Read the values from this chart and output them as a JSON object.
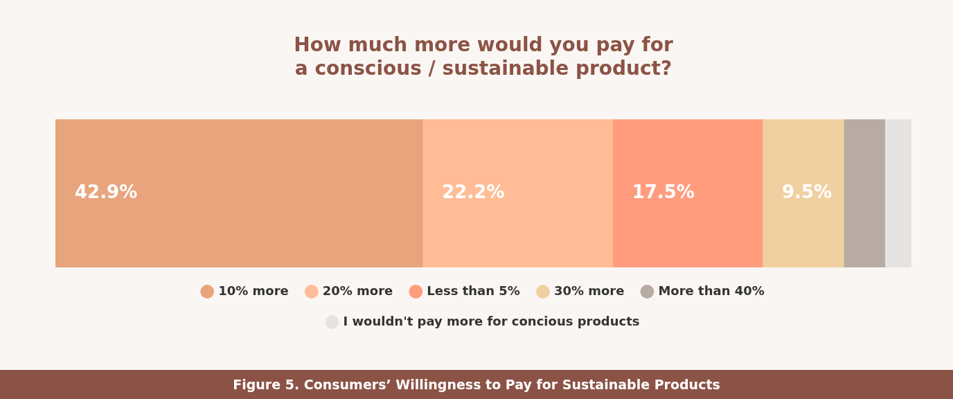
{
  "chart_data": {
    "type": "bar",
    "orientation": "horizontal",
    "stacked": true,
    "title": "How much more would you pay for\na conscious / sustainable product?",
    "categories": [
      null
    ],
    "xlim": [
      0,
      100
    ],
    "tick_labels": false,
    "legend": "bottom",
    "series": [
      {
        "name": "10% more",
        "color": "#e8a47c",
        "values": [
          42.9
        ],
        "value_labels": [
          "42.9%"
        ]
      },
      {
        "name": "20% more",
        "color": "#ffbc97",
        "values": [
          22.2
        ],
        "value_labels": [
          "22.2%"
        ]
      },
      {
        "name": "Less than 5%",
        "color": "#ff9c7e",
        "values": [
          17.5
        ],
        "value_labels": [
          "17.5%"
        ]
      },
      {
        "name": "30% more",
        "color": "#f0d0a0",
        "values": [
          9.5
        ],
        "value_labels": [
          "9.5%"
        ]
      },
      {
        "name": "More than 40%",
        "color": "#b8aba3",
        "values": [
          4.8
        ],
        "value_labels": [
          null
        ]
      },
      {
        "name": "I wouldn't pay more for concious products",
        "color": "#e6e4e3",
        "values": [
          3.1
        ],
        "value_labels": [
          null
        ]
      }
    ],
    "annotations": [
      "Figure 5. Consumers’ Willingness to Pay for Sustainable Products"
    ]
  }
}
